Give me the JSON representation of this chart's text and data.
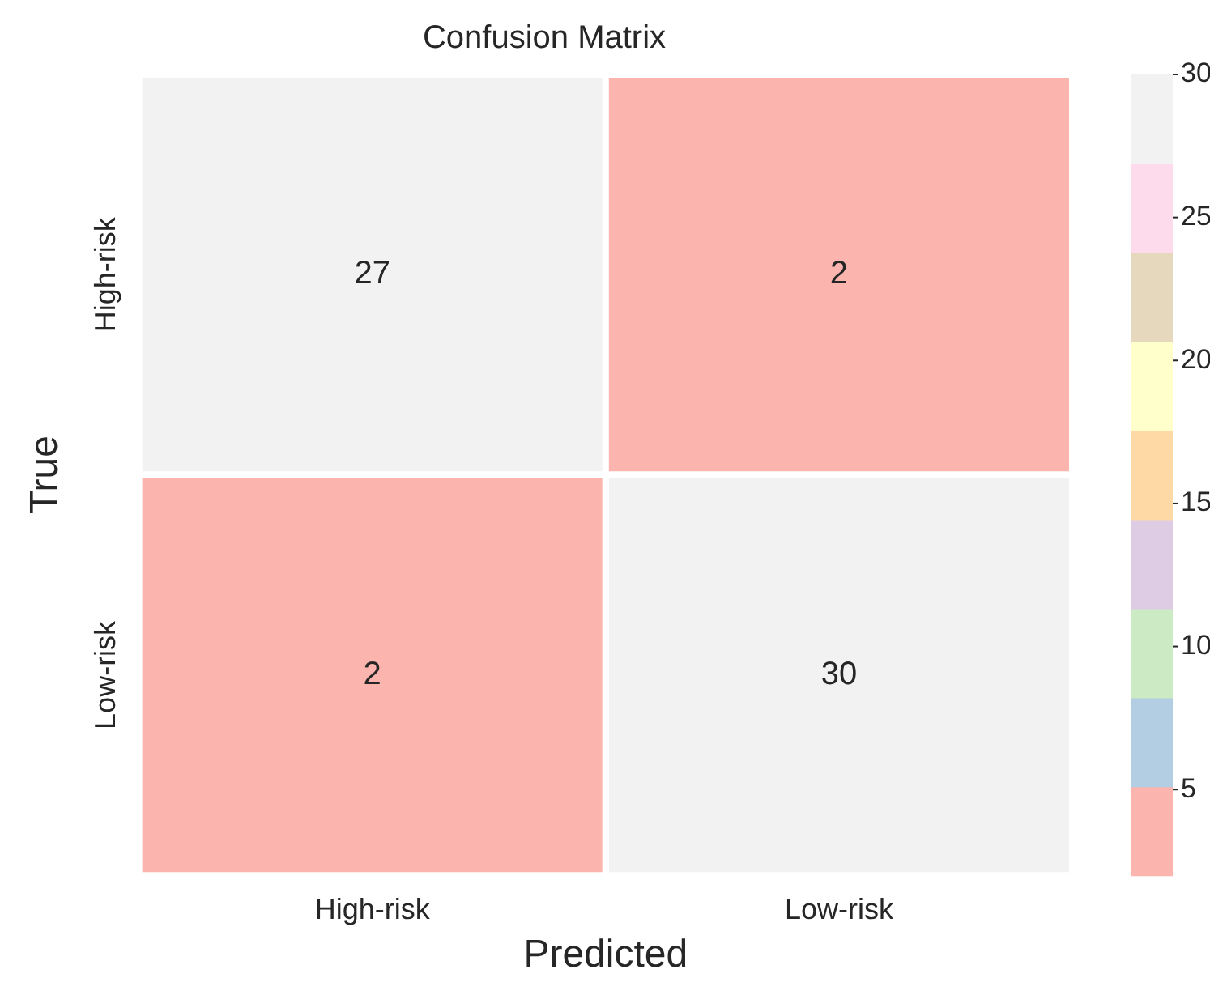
{
  "chart_data": {
    "type": "heatmap",
    "title": "Confusion Matrix",
    "xlabel": "Predicted",
    "ylabel": "True",
    "categories": [
      "High-risk",
      "Low-risk"
    ],
    "y_categories": [
      "High-risk",
      "Low-risk"
    ],
    "cells": [
      [
        27,
        2
      ],
      [
        2,
        30
      ]
    ],
    "data_labels": true,
    "clim": [
      2,
      30
    ],
    "cticks": [
      5,
      10,
      15,
      20,
      25,
      30
    ]
  }
}
